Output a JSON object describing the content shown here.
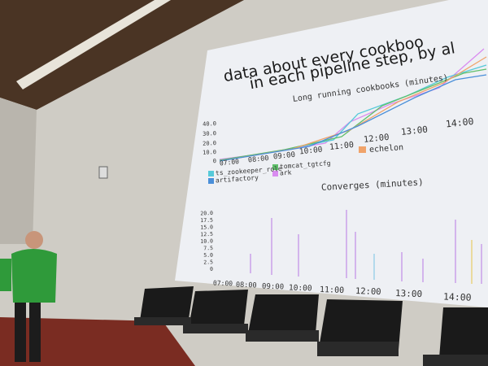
{
  "slide": {
    "title_lines": [
      "data about every cookboo",
      "in each pipeline step, by al"
    ],
    "chart1": {
      "title": "Long running cookbooks (minutes)",
      "yticks": [
        "40.0",
        "30.0",
        "20.0",
        "10.0",
        "0"
      ],
      "xticks": [
        "07:00",
        "08:00",
        "09:00",
        "10:00",
        "11:00",
        "12:00",
        "13:00",
        "14:00"
      ],
      "legend": [
        "echelon",
        "ts_zookeeper_role",
        "tomcat_tgtcfg",
        "artifactory",
        "ark"
      ]
    },
    "chart2": {
      "title": "Converges (minutes)",
      "yticks": [
        "20.0",
        "17.5",
        "15.0",
        "12.5",
        "10.0",
        "7.5",
        "5.0",
        "2.5",
        "0"
      ],
      "xticks": [
        "07:00",
        "08:00",
        "09:00",
        "10:00",
        "11:00",
        "12:00",
        "13:00",
        "14:00"
      ]
    }
  }
}
